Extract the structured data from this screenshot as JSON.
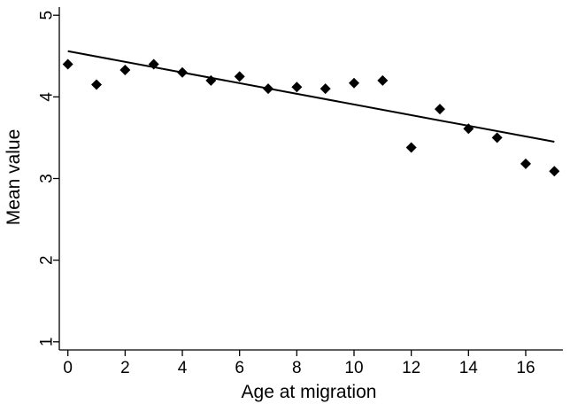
{
  "chart_data": {
    "type": "scatter",
    "title": "",
    "xlabel": "Age at migration",
    "ylabel": "Mean value",
    "xlim": [
      -0.3,
      17.3
    ],
    "ylim": [
      0.9,
      5.1
    ],
    "grid": false,
    "legend": "none",
    "x_ticks": [
      0,
      2,
      4,
      6,
      8,
      10,
      12,
      14,
      16
    ],
    "x_tick_labels": [
      "0",
      "2",
      "4",
      "6",
      "8",
      "10",
      "12",
      "14",
      "16"
    ],
    "y_ticks": [
      1,
      2,
      3,
      4,
      5
    ],
    "y_tick_labels": [
      "1",
      "2",
      "3",
      "4",
      "5"
    ],
    "series": [
      {
        "marker": "diamond",
        "color": "#000000",
        "x": [
          0,
          1,
          2,
          3,
          4,
          5,
          6,
          7,
          8,
          9,
          10,
          11,
          12,
          13,
          14,
          15,
          16,
          17
        ],
        "y": [
          4.4,
          4.15,
          4.33,
          4.4,
          4.3,
          4.2,
          4.25,
          4.1,
          4.12,
          4.1,
          4.17,
          4.2,
          3.38,
          3.85,
          3.61,
          3.5,
          3.18,
          3.09
        ]
      }
    ],
    "fit_line": {
      "type": "linear",
      "color": "#000000",
      "x": [
        0,
        17
      ],
      "y": [
        4.56,
        3.45
      ]
    }
  }
}
